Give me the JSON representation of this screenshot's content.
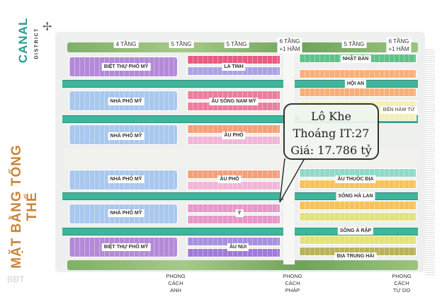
{
  "logo": {
    "word": "CANAL",
    "sub": "DISTRICT"
  },
  "title": "MẶT BẰNG TỔNG THỂ",
  "floors": [
    "4 TẦNG",
    "5 TẦNG",
    "5 TẦNG",
    "6 TẦNG\n+1 HẦM",
    "5 TẦNG",
    "6 TẦNG\n+1 HẦM"
  ],
  "zones": {
    "left": [
      "BIỆT THỰ PHỐ MỸ",
      "NHÀ PHỐ MỸ",
      "NHÀ PHỐ MỸ",
      "NHÀ PHỐ MỸ",
      "NHÀ PHỐ MỸ",
      "BIỆT THỰ PHỐ MỸ"
    ],
    "middle": [
      "LA TINH",
      "ÂU SÔNG NAM MỸ",
      "ÂU PHỐ",
      "ÂU PHỐ",
      "Ý",
      "ÂU NÚI"
    ],
    "right": [
      "NHẬT BẢN",
      "HỘI AN",
      "BẾN HÀM TỬ",
      "ÂU THUỘC ĐỊA",
      "SÔNG HÀ LAN",
      "SÔNG Ả RẬP",
      "ĐỊA TRUNG HẢI"
    ]
  },
  "styles": [
    "PHONG\nCÁCH\nANH",
    "PHONG\nCÁCH\nPHÁP",
    "PHONG\nCÁCH\nTỰ DO"
  ],
  "callout": {
    "line1": "Lô Khe",
    "line2": "Thoáng IT:27",
    "line3": "Giá: 17.786 tỷ"
  },
  "colors": {
    "canal": "#3fb59b",
    "title": "#c8863a"
  },
  "watermark": "BĐT"
}
